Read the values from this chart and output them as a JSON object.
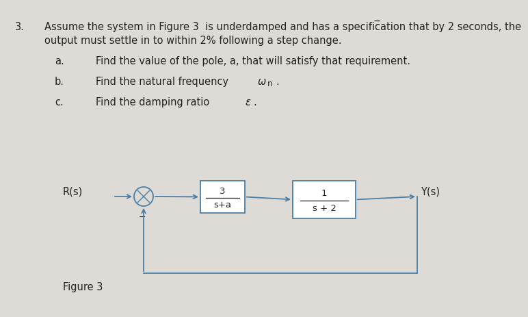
{
  "bg_color": "#dedad5",
  "text_color": "#222222",
  "problem_number": "3.",
  "line1": "Assume the system in Figure 3  is underdamped and has a specification that by 2 seconds, the",
  "line2": "output must settle in to within 2% following a step change.",
  "item_a_label": "a.",
  "item_a_text": "Find the value of the pole, a, that will satisfy that requirement.",
  "item_b_label": "b.",
  "item_b_text_pre": "Find the natural frequency ",
  "item_b_omega": "ω",
  "item_b_sub": "n",
  "item_b_text_post": ".",
  "item_c_label": "c.",
  "item_c_text_pre": "Find the damping ratio ",
  "item_c_eps": "ε",
  "item_c_text_post": ".",
  "fig_label": "Figure 3",
  "Rs_label": "R(s)",
  "Ys_label": "Y(s)",
  "block1_top": "3",
  "block1_bot": "s+a",
  "block2_top": "1",
  "block2_bot": "s + 2",
  "minus_sign": "−",
  "line_color": "#4a7fa8",
  "font_size_main": 10.5,
  "font_size_block": 9.5
}
